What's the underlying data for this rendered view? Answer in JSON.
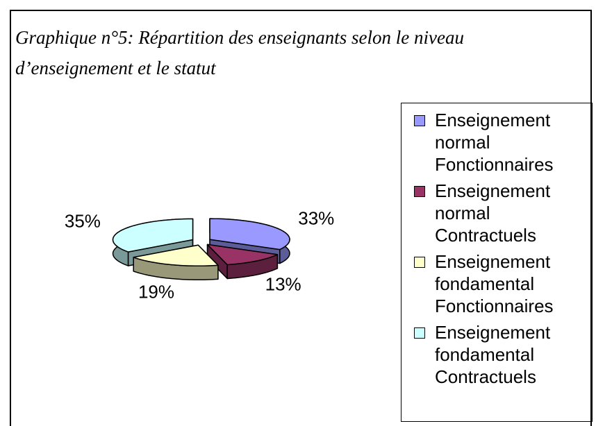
{
  "chart_data": {
    "type": "pie",
    "title": "Graphique n°5: Répartition des enseignants selon le niveau d’enseignement et le statut",
    "categories": [
      "Enseignement normal Fonctionnaires",
      "Enseignement normal Contractuels",
      "Enseignement fondamental Fonctionnaires",
      "Enseignement fondamental Contractuels"
    ],
    "values": [
      33,
      13,
      19,
      35
    ],
    "value_labels": [
      "33%",
      "13%",
      "19%",
      "35%"
    ],
    "colors": [
      "#9999ff",
      "#993366",
      "#ffffcc",
      "#ccffff"
    ],
    "legend": "right"
  }
}
